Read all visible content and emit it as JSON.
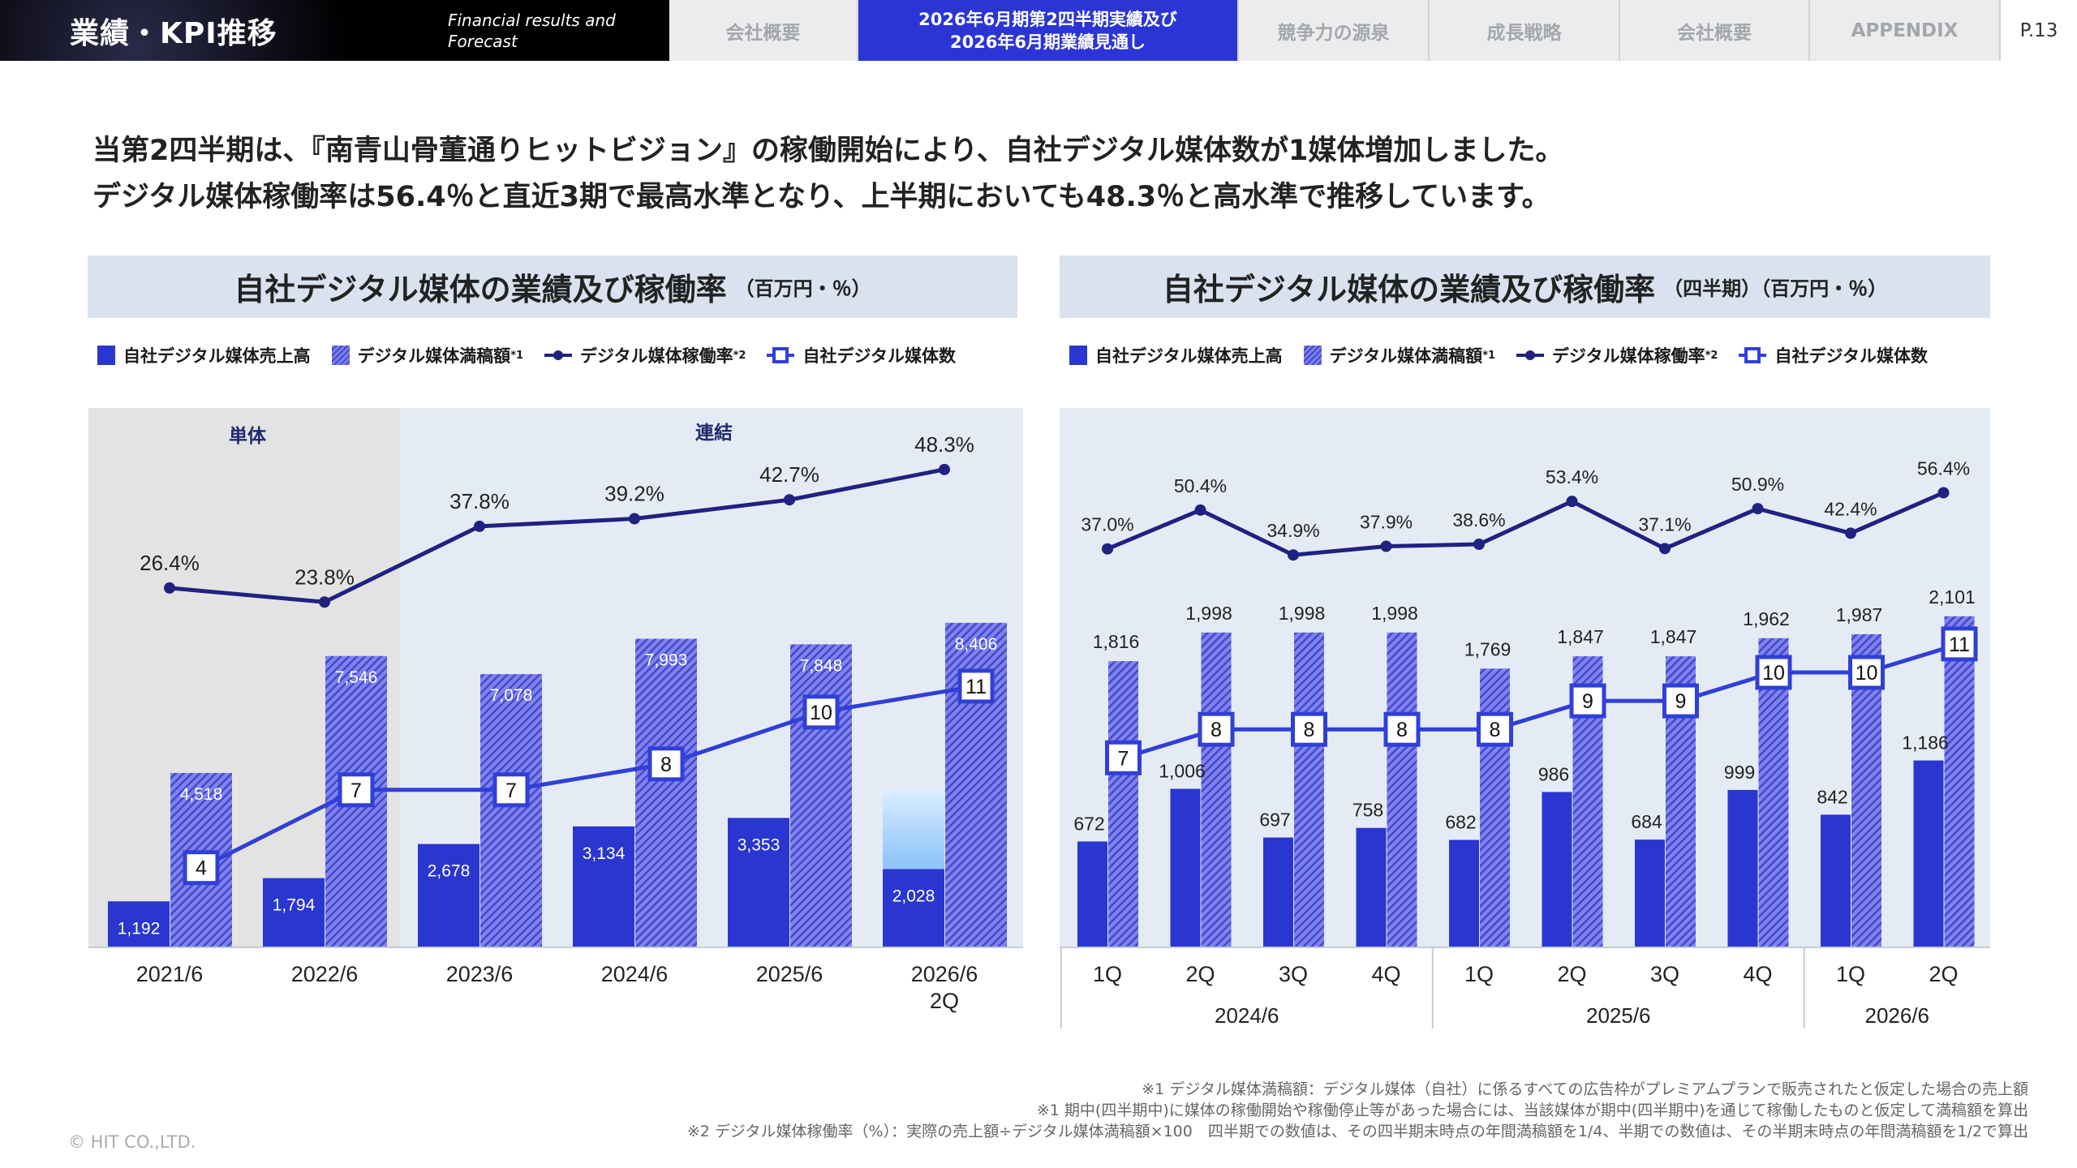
{
  "header": {
    "title": "業績・KPI推移",
    "subtitle": "Financial results and Forecast",
    "tabs": [
      {
        "label": "会社概要"
      },
      {
        "label": "2026年6月期第2四半期実績及び\n2026年6月期業績見通し",
        "active": true
      },
      {
        "label": "競争力の源泉"
      },
      {
        "label": "成長戦略"
      },
      {
        "label": "会社概要"
      },
      {
        "label": "APPENDIX"
      }
    ],
    "page": "P.13"
  },
  "intro": {
    "line1": "当第2四半期は、『南青山骨董通りヒットビジョン』の稼働開始により、自社デジタル媒体数が1媒体増加しました。",
    "line2": "デジタル媒体稼働率は56.4％と直近3期で最高水準となり、上半期においても48.3％と高水準で推移しています。"
  },
  "legend": {
    "sales": "自社デジタル媒体売上高",
    "capacity": "デジタル媒体満稿額",
    "capacity_note": "*1",
    "rate": "デジタル媒体稼働率",
    "rate_note": "*2",
    "count": "自社デジタル媒体数"
  },
  "colors": {
    "sales": "#2a36d0",
    "capacity": "#7d80ea",
    "rate": "#1f2280",
    "count": "#3040d6",
    "header_active": "#2b35d6"
  },
  "chart_data": [
    {
      "type": "bar",
      "title": "自社デジタル媒体の業績及び稼働率",
      "unit": "（百万円・％）",
      "regions": [
        "単体",
        "連結"
      ],
      "categories": [
        "2021/6",
        "2022/6",
        "2023/6",
        "2024/6",
        "2025/6",
        "2026/6\n2Q"
      ],
      "series": [
        {
          "name": "自社デジタル媒体売上高",
          "type": "bar",
          "values": [
            1192,
            1794,
            2678,
            3134,
            3353,
            2028
          ],
          "labels": [
            "1,192",
            "1,794",
            "2,678",
            "3,134",
            "3,353",
            "2,028"
          ]
        },
        {
          "name": "デジタル媒体満稿額",
          "type": "bar-hatched",
          "values": [
            4518,
            7546,
            7078,
            7993,
            7848,
            8406
          ],
          "labels": [
            "4,518",
            "7,546",
            "7,078",
            "7,993",
            "7,848",
            "8,406"
          ]
        },
        {
          "name": "デジタル媒体稼働率",
          "type": "line",
          "values": [
            26.4,
            23.8,
            37.8,
            39.2,
            42.7,
            48.3
          ],
          "labels": [
            "26.4%",
            "23.8%",
            "37.8%",
            "39.2%",
            "42.7%",
            "48.3%"
          ]
        },
        {
          "name": "自社デジタル媒体数",
          "type": "line-box",
          "values": [
            4,
            7,
            7,
            8,
            10,
            11
          ],
          "labels": [
            "4",
            "7",
            "7",
            "8",
            "10",
            "11"
          ]
        }
      ],
      "forecast_sales_top": 4100
    },
    {
      "type": "bar",
      "title": "自社デジタル媒体の業績及び稼働率",
      "unit": "（四半期）（百万円・％）",
      "categories": [
        "1Q",
        "2Q",
        "3Q",
        "4Q",
        "1Q",
        "2Q",
        "3Q",
        "4Q",
        "1Q",
        "2Q"
      ],
      "groups": [
        {
          "label": "2024/6",
          "span": 4
        },
        {
          "label": "2025/6",
          "span": 4
        },
        {
          "label": "2026/6",
          "span": 2
        }
      ],
      "series": [
        {
          "name": "自社デジタル媒体売上高",
          "type": "bar",
          "values": [
            672,
            1006,
            697,
            758,
            682,
            986,
            684,
            999,
            842,
            1186
          ],
          "labels": [
            "672",
            "1,006",
            "697",
            "758",
            "682",
            "986",
            "684",
            "999",
            "842",
            "1,186"
          ]
        },
        {
          "name": "デジタル媒体満稿額",
          "type": "bar-hatched",
          "values": [
            1816,
            1998,
            1998,
            1998,
            1769,
            1847,
            1847,
            1962,
            1987,
            2101
          ],
          "labels": [
            "1,816",
            "1,998",
            "1,998",
            "1,998",
            "1,769",
            "1,847",
            "1,847",
            "1,962",
            "1,987",
            "2,101"
          ]
        },
        {
          "name": "デジタル媒体稼働率",
          "type": "line",
          "values": [
            37.0,
            50.4,
            34.9,
            37.9,
            38.6,
            53.4,
            37.1,
            50.9,
            42.4,
            56.4
          ],
          "labels": [
            "37.0%",
            "50.4%",
            "34.9%",
            "37.9%",
            "38.6%",
            "53.4%",
            "37.1%",
            "50.9%",
            "42.4%",
            "56.4%"
          ]
        },
        {
          "name": "自社デジタル媒体数",
          "type": "line-box",
          "values": [
            7,
            8,
            8,
            8,
            8,
            9,
            9,
            10,
            10,
            11
          ],
          "labels": [
            "7",
            "8",
            "8",
            "8",
            "8",
            "9",
            "9",
            "10",
            "10",
            "11"
          ]
        }
      ]
    }
  ],
  "footnotes": [
    "※1 デジタル媒体満稿額：デジタル媒体（自社）に係るすべての広告枠がプレミアムプランで販売されたと仮定した場合の売上額",
    "※1 期中(四半期中)に媒体の稼働開始や稼働停止等があった場合には、当該媒体が期中(四半期中)を通じて稼働したものと仮定して満稿額を算出",
    "※2 デジタル媒体稼働率（%）：実際の売上額÷デジタル媒体満稿額×100　四半期での数値は、その四半期末時点の年間満稿額を1/4、半期での数値は、その半期末時点の年間満稿額を1/2で算出"
  ],
  "copyright": "© HIT CO.,LTD."
}
